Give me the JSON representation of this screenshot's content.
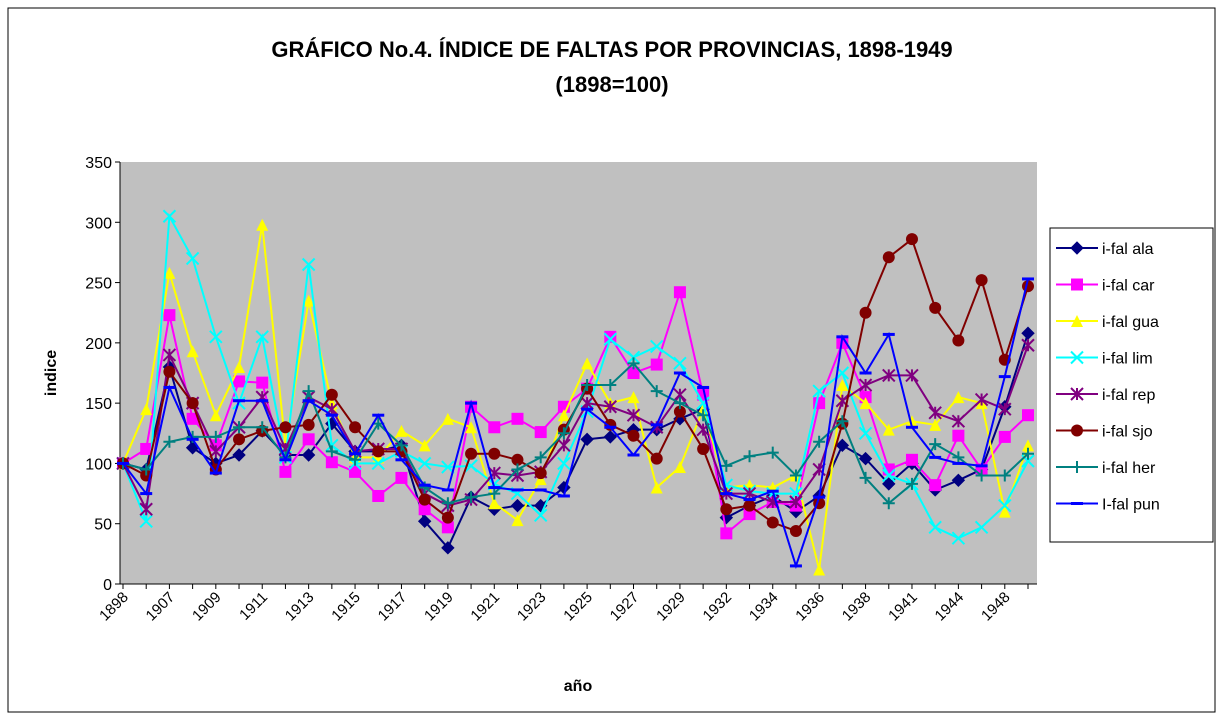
{
  "chart_data": {
    "type": "line",
    "title": "GRÁFICO No.4.  ÍNDICE DE FALTAS POR PROVINCIAS, 1898-1949",
    "subtitle": "(1898=100)",
    "x_label": "año",
    "y_label": "indice",
    "categories": [
      "1898",
      null,
      "1907",
      null,
      "1909",
      null,
      "1911",
      null,
      "1913",
      null,
      "1915",
      null,
      "1917",
      null,
      "1919",
      null,
      "1921",
      null,
      "1923",
      null,
      "1925",
      null,
      "1927",
      null,
      "1929",
      null,
      "1932",
      null,
      "1934",
      null,
      "1936",
      null,
      "1938",
      null,
      "1941",
      null,
      "1944",
      null,
      "1948",
      null
    ],
    "ylim": [
      0,
      350
    ],
    "yticks": [
      0,
      50,
      100,
      150,
      200,
      250,
      300,
      350
    ],
    "grid": false,
    "legend": "right",
    "series": [
      {
        "name": "i-fal ala",
        "color": "#000080",
        "marker": "diamond",
        "values": [
          100,
          95,
          180,
          113,
          100,
          107,
          127,
          107,
          107,
          133,
          110,
          110,
          115,
          52,
          30,
          72,
          62,
          65,
          65,
          80,
          120,
          122,
          128,
          128,
          137,
          145,
          55,
          65,
          73,
          60,
          73,
          115,
          104,
          83,
          100,
          78,
          86,
          95,
          147,
          208
        ]
      },
      {
        "name": "i-fal car",
        "color": "#ff00ff",
        "marker": "square",
        "values": [
          100,
          112,
          223,
          137,
          115,
          168,
          167,
          93,
          120,
          101,
          93,
          73,
          88,
          62,
          47,
          147,
          130,
          137,
          126,
          147,
          162,
          205,
          175,
          182,
          242,
          157,
          42,
          58,
          68,
          65,
          150,
          200,
          155,
          95,
          103,
          82,
          123,
          95,
          122,
          140
        ]
      },
      {
        "name": "i-fal gua",
        "color": "#ffff00",
        "marker": "triangle",
        "values": [
          100,
          145,
          258,
          193,
          140,
          180,
          298,
          115,
          235,
          150,
          105,
          105,
          127,
          115,
          137,
          130,
          67,
          53,
          87,
          140,
          183,
          150,
          155,
          80,
          97,
          145,
          80,
          82,
          80,
          90,
          12,
          165,
          150,
          128,
          135,
          132,
          155,
          150,
          60,
          115
        ]
      },
      {
        "name": "i-fal lim",
        "color": "#00ffff",
        "marker": "x",
        "values": [
          100,
          52,
          305,
          270,
          205,
          150,
          205,
          105,
          265,
          115,
          100,
          100,
          110,
          100,
          97,
          98,
          83,
          75,
          57,
          100,
          143,
          203,
          188,
          197,
          183,
          150,
          82,
          77,
          75,
          75,
          160,
          175,
          125,
          90,
          83,
          47,
          38,
          47,
          65,
          102
        ]
      },
      {
        "name": "i-fal rep",
        "color": "#800080",
        "marker": "star",
        "values": [
          100,
          62,
          190,
          150,
          110,
          130,
          155,
          112,
          155,
          145,
          110,
          112,
          112,
          75,
          65,
          70,
          92,
          90,
          93,
          115,
          150,
          147,
          140,
          130,
          157,
          128,
          75,
          75,
          68,
          68,
          95,
          152,
          165,
          173,
          173,
          142,
          135,
          153,
          145,
          198
        ]
      },
      {
        "name": "i-fal sjo",
        "color": "#800000",
        "marker": "circle",
        "values": [
          100,
          90,
          176,
          150,
          95,
          120,
          127,
          130,
          132,
          157,
          130,
          110,
          110,
          70,
          55,
          108,
          108,
          103,
          92,
          128,
          162,
          132,
          123,
          104,
          143,
          112,
          62,
          65,
          51,
          44,
          67,
          133,
          225,
          271,
          286,
          229,
          202,
          252,
          186,
          247
        ]
      },
      {
        "name": "i-fal her",
        "color": "#008080",
        "marker": "plus",
        "values": [
          100,
          95,
          118,
          122,
          122,
          130,
          130,
          105,
          160,
          110,
          103,
          133,
          115,
          80,
          67,
          72,
          75,
          95,
          105,
          125,
          165,
          165,
          183,
          160,
          150,
          140,
          98,
          106,
          109,
          90,
          118,
          135,
          88,
          67,
          83,
          116,
          105,
          90,
          90,
          108
        ]
      },
      {
        "name": "I-fal pun",
        "color": "#0000ff",
        "marker": "dash",
        "values": [
          100,
          75,
          163,
          120,
          92,
          152,
          152,
          103,
          152,
          140,
          108,
          140,
          103,
          82,
          78,
          150,
          80,
          78,
          78,
          73,
          145,
          130,
          107,
          132,
          175,
          163,
          75,
          70,
          77,
          15,
          72,
          205,
          175,
          207,
          130,
          105,
          100,
          98,
          172,
          253
        ]
      }
    ]
  }
}
